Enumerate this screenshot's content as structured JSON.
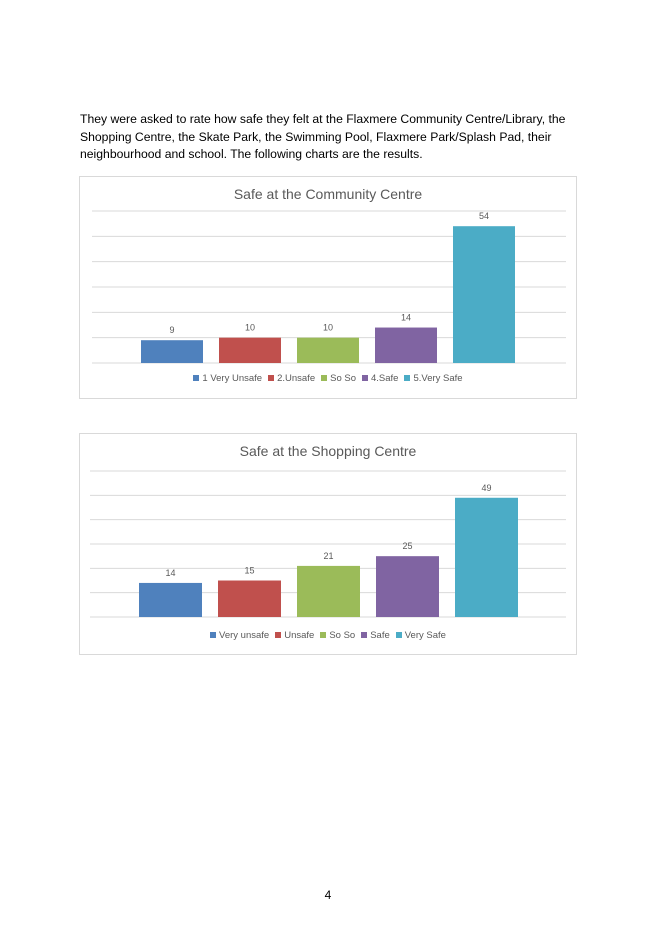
{
  "intro": "They were asked to rate how safe they felt at the Flaxmere Community Centre/Library, the Shopping Centre, the Skate Park, the Swimming Pool, Flaxmere Park/Splash Pad, their neighbourhood and school. The following charts are the results.",
  "chart_data": [
    {
      "type": "bar",
      "title": "Safe at the Community Centre",
      "categories": [
        "1 Very Unsafe",
        "2.Unsafe",
        "So So",
        "4.Safe",
        "5.Very Safe"
      ],
      "values": [
        9,
        10,
        10,
        14,
        54
      ],
      "colors": [
        "#4f81bd",
        "#c0504d",
        "#9bbb59",
        "#8064a2",
        "#4bacc6"
      ],
      "ylim": [
        0,
        60
      ],
      "grid": true,
      "legend": "bottom",
      "xlabel": "",
      "ylabel": ""
    },
    {
      "type": "bar",
      "title": "Safe at the Shopping Centre",
      "categories": [
        "Very unsafe",
        "Unsafe",
        "So So",
        "Safe",
        "Very Safe"
      ],
      "values": [
        14,
        15,
        21,
        25,
        49
      ],
      "colors": [
        "#4f81bd",
        "#c0504d",
        "#9bbb59",
        "#8064a2",
        "#4bacc6"
      ],
      "ylim": [
        0,
        60
      ],
      "grid": true,
      "legend": "bottom",
      "xlabel": "",
      "ylabel": ""
    }
  ],
  "page_number": "4"
}
